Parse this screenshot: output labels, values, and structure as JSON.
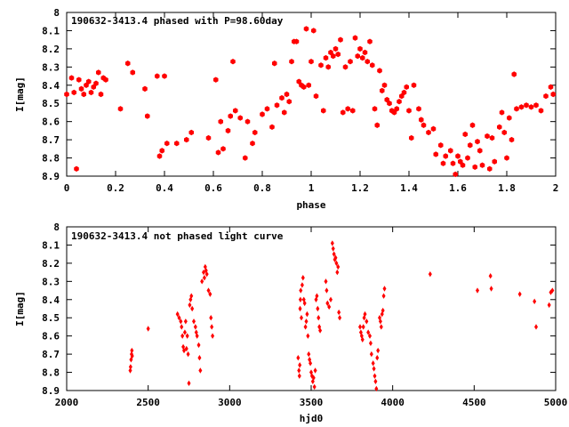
{
  "chart_data": [
    {
      "type": "scatter",
      "title": "190632-3413.4 phased with P=98.60day",
      "xlabel": "phase",
      "ylabel": "I[mag]",
      "xlim": [
        0,
        2
      ],
      "ylim": [
        8.9,
        8
      ],
      "y_inverted": true,
      "xticks": [
        0,
        0.2,
        0.4,
        0.6,
        0.8,
        1,
        1.2,
        1.4,
        1.6,
        1.8,
        2
      ],
      "xtick_labels": [
        "0",
        "0.2",
        "0.4",
        "0.6",
        "0.8",
        "1",
        "1.2",
        "1.4",
        "1.6",
        "1.8",
        "2"
      ],
      "yticks": [
        8,
        8.1,
        8.2,
        8.3,
        8.4,
        8.5,
        8.6,
        8.7,
        8.8,
        8.9
      ],
      "ytick_labels": [
        "8",
        "8.1",
        "8.2",
        "8.3",
        "8.4",
        "8.5",
        "8.6",
        "8.7",
        "8.8",
        "8.9"
      ],
      "marker": "hexagon",
      "color": "#ff0000",
      "points": [
        [
          0.0,
          8.45
        ],
        [
          0.02,
          8.36
        ],
        [
          0.03,
          8.44
        ],
        [
          0.04,
          8.86
        ],
        [
          0.05,
          8.37
        ],
        [
          0.06,
          8.42
        ],
        [
          0.07,
          8.45
        ],
        [
          0.08,
          8.4
        ],
        [
          0.09,
          8.38
        ],
        [
          0.1,
          8.44
        ],
        [
          0.11,
          8.41
        ],
        [
          0.12,
          8.39
        ],
        [
          0.13,
          8.33
        ],
        [
          0.14,
          8.45
        ],
        [
          0.15,
          8.36
        ],
        [
          0.16,
          8.37
        ],
        [
          0.22,
          8.53
        ],
        [
          0.25,
          8.28
        ],
        [
          0.27,
          8.33
        ],
        [
          0.32,
          8.42
        ],
        [
          0.33,
          8.57
        ],
        [
          0.37,
          8.35
        ],
        [
          0.38,
          8.79
        ],
        [
          0.39,
          8.76
        ],
        [
          0.4,
          8.35
        ],
        [
          0.41,
          8.72
        ],
        [
          0.45,
          8.72
        ],
        [
          0.49,
          8.7
        ],
        [
          0.51,
          8.66
        ],
        [
          0.58,
          8.69
        ],
        [
          0.61,
          8.37
        ],
        [
          0.62,
          8.77
        ],
        [
          0.63,
          8.6
        ],
        [
          0.64,
          8.75
        ],
        [
          0.66,
          8.65
        ],
        [
          0.67,
          8.57
        ],
        [
          0.68,
          8.27
        ],
        [
          0.69,
          8.54
        ],
        [
          0.71,
          8.58
        ],
        [
          0.73,
          8.8
        ],
        [
          0.74,
          8.6
        ],
        [
          0.76,
          8.72
        ],
        [
          0.77,
          8.66
        ],
        [
          0.8,
          8.56
        ],
        [
          0.82,
          8.53
        ],
        [
          0.84,
          8.63
        ],
        [
          0.85,
          8.28
        ],
        [
          0.86,
          8.51
        ],
        [
          0.88,
          8.47
        ],
        [
          0.89,
          8.55
        ],
        [
          0.9,
          8.45
        ],
        [
          0.91,
          8.49
        ],
        [
          0.92,
          8.27
        ],
        [
          0.93,
          8.16
        ],
        [
          0.94,
          8.16
        ],
        [
          0.95,
          8.38
        ],
        [
          0.96,
          8.4
        ],
        [
          0.97,
          8.41
        ],
        [
          0.98,
          8.09
        ],
        [
          0.99,
          8.4
        ],
        [
          1.0,
          8.27
        ],
        [
          1.01,
          8.1
        ],
        [
          1.02,
          8.46
        ],
        [
          1.04,
          8.29
        ],
        [
          1.05,
          8.54
        ],
        [
          1.06,
          8.25
        ],
        [
          1.07,
          8.3
        ],
        [
          1.08,
          8.22
        ],
        [
          1.09,
          8.24
        ],
        [
          1.1,
          8.2
        ],
        [
          1.11,
          8.23
        ],
        [
          1.12,
          8.15
        ],
        [
          1.13,
          8.55
        ],
        [
          1.14,
          8.3
        ],
        [
          1.15,
          8.53
        ],
        [
          1.16,
          8.27
        ],
        [
          1.17,
          8.54
        ],
        [
          1.18,
          8.14
        ],
        [
          1.19,
          8.24
        ],
        [
          1.2,
          8.2
        ],
        [
          1.21,
          8.25
        ],
        [
          1.22,
          8.22
        ],
        [
          1.23,
          8.27
        ],
        [
          1.24,
          8.16
        ],
        [
          1.25,
          8.29
        ],
        [
          1.26,
          8.53
        ],
        [
          1.27,
          8.62
        ],
        [
          1.28,
          8.32
        ],
        [
          1.29,
          8.43
        ],
        [
          1.3,
          8.4
        ],
        [
          1.31,
          8.48
        ],
        [
          1.32,
          8.5
        ],
        [
          1.33,
          8.54
        ],
        [
          1.34,
          8.55
        ],
        [
          1.35,
          8.53
        ],
        [
          1.36,
          8.49
        ],
        [
          1.37,
          8.46
        ],
        [
          1.38,
          8.44
        ],
        [
          1.39,
          8.41
        ],
        [
          1.4,
          8.54
        ],
        [
          1.41,
          8.69
        ],
        [
          1.42,
          8.4
        ],
        [
          1.44,
          8.53
        ],
        [
          1.45,
          8.59
        ],
        [
          1.46,
          8.62
        ],
        [
          1.48,
          8.66
        ],
        [
          1.5,
          8.64
        ],
        [
          1.51,
          8.78
        ],
        [
          1.53,
          8.73
        ],
        [
          1.54,
          8.83
        ],
        [
          1.55,
          8.79
        ],
        [
          1.57,
          8.76
        ],
        [
          1.58,
          8.83
        ],
        [
          1.59,
          8.89
        ],
        [
          1.6,
          8.79
        ],
        [
          1.61,
          8.82
        ],
        [
          1.62,
          8.84
        ],
        [
          1.63,
          8.67
        ],
        [
          1.64,
          8.8
        ],
        [
          1.65,
          8.73
        ],
        [
          1.66,
          8.62
        ],
        [
          1.67,
          8.85
        ],
        [
          1.68,
          8.71
        ],
        [
          1.69,
          8.76
        ],
        [
          1.7,
          8.84
        ],
        [
          1.72,
          8.68
        ],
        [
          1.73,
          8.86
        ],
        [
          1.74,
          8.69
        ],
        [
          1.75,
          8.82
        ],
        [
          1.77,
          8.63
        ],
        [
          1.78,
          8.55
        ],
        [
          1.79,
          8.66
        ],
        [
          1.8,
          8.8
        ],
        [
          1.81,
          8.58
        ],
        [
          1.82,
          8.7
        ],
        [
          1.83,
          8.34
        ],
        [
          1.84,
          8.53
        ],
        [
          1.86,
          8.52
        ],
        [
          1.88,
          8.51
        ],
        [
          1.9,
          8.52
        ],
        [
          1.92,
          8.51
        ],
        [
          1.94,
          8.54
        ],
        [
          1.96,
          8.46
        ],
        [
          1.98,
          8.41
        ],
        [
          1.99,
          8.45
        ]
      ]
    },
    {
      "type": "scatter",
      "title": "190632-3413.4 not phased light curve",
      "xlabel": "hjd0",
      "ylabel": "I[mag]",
      "xlim": [
        2000,
        5000
      ],
      "ylim": [
        8.9,
        8
      ],
      "y_inverted": true,
      "xticks": [
        2000,
        2500,
        3000,
        3500,
        4000,
        4500,
        5000
      ],
      "xtick_labels": [
        "2000",
        "2500",
        "3000",
        "3500",
        "4000",
        "4500",
        "5000"
      ],
      "yticks": [
        8,
        8.1,
        8.2,
        8.3,
        8.4,
        8.5,
        8.6,
        8.7,
        8.8,
        8.9
      ],
      "ytick_labels": [
        "8",
        "8.1",
        "8.2",
        "8.3",
        "8.4",
        "8.5",
        "8.6",
        "8.7",
        "8.8",
        "8.9"
      ],
      "marker": "diamond",
      "color": "#ff0000",
      "points": [
        [
          2390,
          8.79
        ],
        [
          2392,
          8.77
        ],
        [
          2395,
          8.73
        ],
        [
          2398,
          8.7
        ],
        [
          2400,
          8.68
        ],
        [
          2402,
          8.71
        ],
        [
          2500,
          8.56
        ],
        [
          2680,
          8.48
        ],
        [
          2690,
          8.5
        ],
        [
          2700,
          8.52
        ],
        [
          2705,
          8.55
        ],
        [
          2710,
          8.6
        ],
        [
          2715,
          8.66
        ],
        [
          2720,
          8.68
        ],
        [
          2725,
          8.58
        ],
        [
          2730,
          8.52
        ],
        [
          2735,
          8.67
        ],
        [
          2740,
          8.6
        ],
        [
          2745,
          8.7
        ],
        [
          2750,
          8.86
        ],
        [
          2755,
          8.43
        ],
        [
          2760,
          8.4
        ],
        [
          2765,
          8.38
        ],
        [
          2770,
          8.45
        ],
        [
          2780,
          8.52
        ],
        [
          2790,
          8.55
        ],
        [
          2795,
          8.58
        ],
        [
          2800,
          8.6
        ],
        [
          2810,
          8.65
        ],
        [
          2815,
          8.72
        ],
        [
          2820,
          8.79
        ],
        [
          2830,
          8.3
        ],
        [
          2840,
          8.25
        ],
        [
          2845,
          8.28
        ],
        [
          2850,
          8.22
        ],
        [
          2855,
          8.24
        ],
        [
          2860,
          8.26
        ],
        [
          2870,
          8.35
        ],
        [
          2880,
          8.37
        ],
        [
          2885,
          8.5
        ],
        [
          2890,
          8.55
        ],
        [
          2895,
          8.6
        ],
        [
          3420,
          8.72
        ],
        [
          3425,
          8.79
        ],
        [
          3428,
          8.82
        ],
        [
          3430,
          8.76
        ],
        [
          3432,
          8.45
        ],
        [
          3434,
          8.4
        ],
        [
          3436,
          8.35
        ],
        [
          3440,
          8.5
        ],
        [
          3445,
          8.32
        ],
        [
          3450,
          8.28
        ],
        [
          3455,
          8.4
        ],
        [
          3460,
          8.42
        ],
        [
          3465,
          8.55
        ],
        [
          3470,
          8.52
        ],
        [
          3475,
          8.48
        ],
        [
          3480,
          8.6
        ],
        [
          3485,
          8.7
        ],
        [
          3490,
          8.73
        ],
        [
          3495,
          8.75
        ],
        [
          3500,
          8.8
        ],
        [
          3505,
          8.82
        ],
        [
          3510,
          8.85
        ],
        [
          3515,
          8.83
        ],
        [
          3520,
          8.88
        ],
        [
          3525,
          8.79
        ],
        [
          3530,
          8.4
        ],
        [
          3535,
          8.38
        ],
        [
          3540,
          8.45
        ],
        [
          3545,
          8.5
        ],
        [
          3550,
          8.55
        ],
        [
          3555,
          8.57
        ],
        [
          3590,
          8.3
        ],
        [
          3595,
          8.35
        ],
        [
          3600,
          8.42
        ],
        [
          3610,
          8.44
        ],
        [
          3620,
          8.4
        ],
        [
          3630,
          8.09
        ],
        [
          3635,
          8.12
        ],
        [
          3640,
          8.15
        ],
        [
          3645,
          8.18
        ],
        [
          3650,
          8.17
        ],
        [
          3655,
          8.2
        ],
        [
          3660,
          8.25
        ],
        [
          3665,
          8.22
        ],
        [
          3670,
          8.47
        ],
        [
          3675,
          8.5
        ],
        [
          3800,
          8.55
        ],
        [
          3805,
          8.58
        ],
        [
          3810,
          8.6
        ],
        [
          3815,
          8.62
        ],
        [
          3820,
          8.55
        ],
        [
          3825,
          8.5
        ],
        [
          3830,
          8.48
        ],
        [
          3840,
          8.52
        ],
        [
          3850,
          8.58
        ],
        [
          3860,
          8.6
        ],
        [
          3865,
          8.64
        ],
        [
          3870,
          8.7
        ],
        [
          3880,
          8.75
        ],
        [
          3885,
          8.78
        ],
        [
          3890,
          8.82
        ],
        [
          3895,
          8.85
        ],
        [
          3900,
          8.89
        ],
        [
          3905,
          8.72
        ],
        [
          3910,
          8.68
        ],
        [
          3920,
          8.5
        ],
        [
          3925,
          8.52
        ],
        [
          3930,
          8.55
        ],
        [
          3935,
          8.48
        ],
        [
          3940,
          8.46
        ],
        [
          3945,
          8.38
        ],
        [
          3950,
          8.34
        ],
        [
          4230,
          8.26
        ],
        [
          4520,
          8.35
        ],
        [
          4600,
          8.27
        ],
        [
          4605,
          8.34
        ],
        [
          4780,
          8.37
        ],
        [
          4870,
          8.41
        ],
        [
          4880,
          8.55
        ],
        [
          4960,
          8.43
        ],
        [
          4970,
          8.36
        ],
        [
          4980,
          8.35
        ]
      ]
    }
  ]
}
